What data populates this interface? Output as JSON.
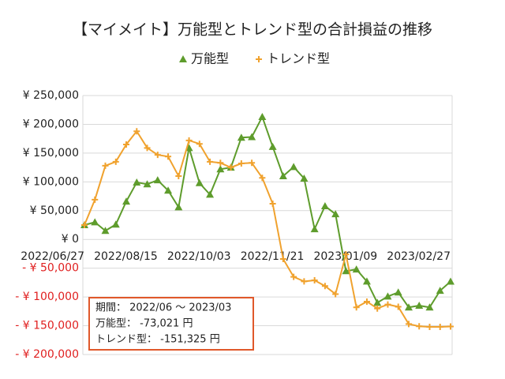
{
  "chart_data": {
    "type": "line",
    "title": "【マイメイト】万能型とトレンド型の合計損益の推移",
    "categories": [
      "2022/06/27",
      null,
      null,
      null,
      null,
      null,
      null,
      "2022/08/15",
      null,
      null,
      null,
      null,
      null,
      null,
      "2022/10/03",
      null,
      null,
      null,
      null,
      null,
      null,
      "2022/11/21",
      null,
      null,
      null,
      null,
      null,
      null,
      "2023/01/09",
      null,
      null,
      null,
      null,
      null,
      null,
      "2023/02/27"
    ],
    "series": [
      {
        "name": "万能型",
        "color": "#5e9c2c",
        "marker": "triangle",
        "values": [
          25000,
          30000,
          15000,
          26000,
          66000,
          99000,
          96000,
          103000,
          85000,
          56000,
          159000,
          98000,
          78000,
          122000,
          125000,
          177000,
          178000,
          213000,
          161000,
          110000,
          126000,
          106000,
          18000,
          58000,
          44000,
          -55000,
          -52000,
          -73000,
          -110000,
          -99000,
          -92000,
          -118000,
          -115000,
          -118000,
          -89000,
          -73021
        ]
      },
      {
        "name": "トレンド型",
        "color": "#f0a22e",
        "marker": "plus",
        "values": [
          25000,
          69000,
          128000,
          135000,
          165000,
          188000,
          159000,
          147000,
          144000,
          110000,
          172000,
          166000,
          135000,
          133000,
          125000,
          132000,
          133000,
          107000,
          62000,
          -34000,
          -65000,
          -73000,
          -71000,
          -81000,
          -95000,
          -26000,
          -118000,
          -108000,
          -120000,
          -113000,
          -117000,
          -147000,
          -151000,
          -152000,
          -152000,
          -151325
        ]
      }
    ],
    "ylim": [
      -200000,
      250000
    ],
    "yticks": [
      {
        "value": -200000,
        "label": "- ¥ 200,000"
      },
      {
        "value": -150000,
        "label": "- ¥ 150,000"
      },
      {
        "value": -100000,
        "label": "- ¥ 100,000"
      },
      {
        "value": -50000,
        "label": "- ¥ 50,000"
      },
      {
        "value": 0,
        "label": "¥ 0"
      },
      {
        "value": 50000,
        "label": "¥ 50,000"
      },
      {
        "value": 100000,
        "label": "¥ 100,000"
      },
      {
        "value": 150000,
        "label": "¥ 150,000"
      },
      {
        "value": 200000,
        "label": "¥ 200,000"
      },
      {
        "value": 250000,
        "label": "¥ 250,000"
      }
    ],
    "negative_label_color": "#e02020",
    "grid": true,
    "legend": "top",
    "annotation": [
      "期間： 2022/06 ～ 2023/03",
      "万能型： -73,021 円",
      "トレンド型： -151,325 円"
    ]
  }
}
